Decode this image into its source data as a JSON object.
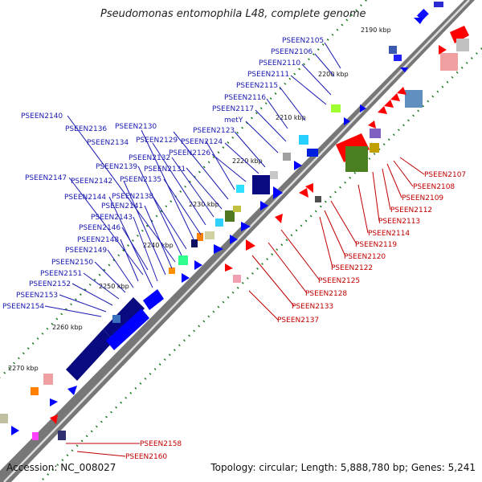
{
  "title": "Pseudomonas entomophila L48, complete genome",
  "accession": "Accession: NC_008027",
  "summary": "Topology: circular; Length: 5,888,780 bp; Genes: 5,241",
  "tick_labels": [
    "2190 kbp",
    "2200 kbp",
    "2210 kbp",
    "2220 kbp",
    "2230 kbp",
    "2240 kbp",
    "2250 kbp",
    "2260 kbp",
    "2270 kbp"
  ],
  "plus_strand_genes": [
    "PSEEN2105",
    "PSEEN2106",
    "PSEEN2110",
    "PSEEN2111",
    "PSEEN2115",
    "PSEEN2116",
    "PSEEN2117",
    "metY",
    "PSEEN2123",
    "PSEEN2124",
    "PSEEN2126",
    "PSEEN2129",
    "PSEEN2130",
    "PSEEN2131",
    "PSEEN2132",
    "PSEEN2134",
    "PSEEN2135",
    "PSEEN2136",
    "PSEEN2138",
    "PSEEN2139",
    "PSEEN2140",
    "PSEEN2141",
    "PSEEN2142",
    "PSEEN2143",
    "PSEEN2144",
    "PSEEN2146",
    "PSEEN2147",
    "PSEEN2148",
    "PSEEN2149",
    "PSEEN2150",
    "PSEEN2151",
    "PSEEN2152",
    "PSEEN2153",
    "PSEEN2154"
  ],
  "minus_strand_genes": [
    "PSEEN2107",
    "PSEEN2108",
    "PSEEN2109",
    "PSEEN2112",
    "PSEEN2113",
    "PSEEN2114",
    "PSEEN2119",
    "PSEEN2120",
    "PSEEN2122",
    "PSEEN2125",
    "PSEEN2128",
    "PSEEN2133",
    "PSEEN2137",
    "PSEEN2158",
    "PSEEN2160"
  ],
  "colors": {
    "plus_strand": "#0a0aff",
    "minus_strand": "#ff0000",
    "backbone": "#909090",
    "tick_marks": "#1a7a1a"
  }
}
